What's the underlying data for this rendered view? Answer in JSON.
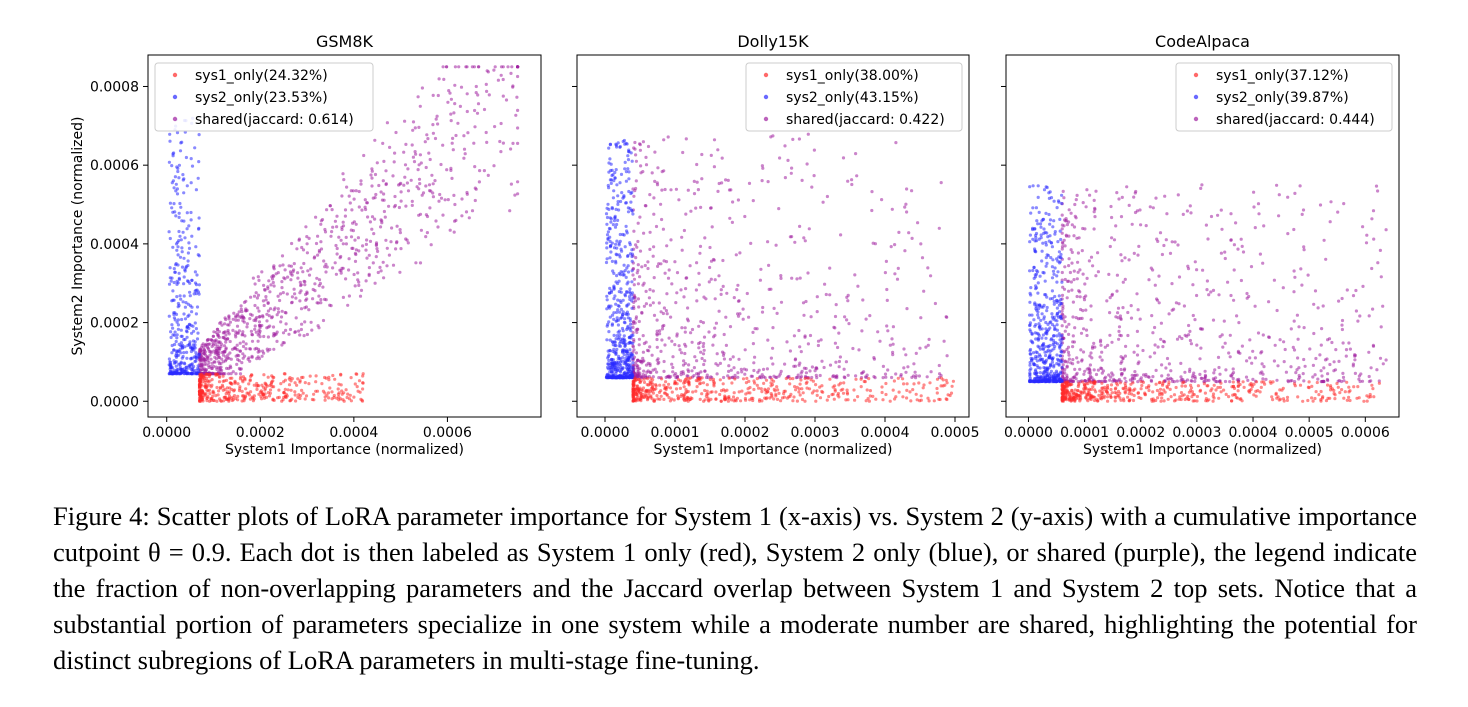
{
  "figure": {
    "caption": "Figure 4: Scatter plots of LoRA parameter importance for System 1 (x-axis) vs. System 2 (y-axis) with a cumulative importance cutpoint θ = 0.9. Each dot is then labeled as System 1 only (red), System 2 only (blue), or shared (purple), the legend indicate the fraction of non-overlapping parameters and the Jaccard overlap between System 1 and System 2 top sets. Notice that a substantial portion of parameters specialize in one system while a moderate number are shared, highlighting the potential for distinct subregions of LoRA parameters in multi-stage fine-tuning."
  },
  "colors": {
    "sys1": "#ff2a2a",
    "sys2": "#2a2aff",
    "shared": "#a020a0"
  },
  "chart_data": [
    {
      "type": "scatter",
      "title": "GSM8K",
      "xlabel": "System1 Importance (normalized)",
      "ylabel": "System2 Importance (normalized)",
      "xlim": [
        -4e-05,
        0.0008
      ],
      "ylim": [
        -4e-05,
        0.00088
      ],
      "xticks": [
        0,
        0.0002,
        0.0004,
        0.0006
      ],
      "xtick_labels": [
        "0.0000",
        "0.0002",
        "0.0004",
        "0.0006"
      ],
      "yticks": [
        0,
        0.0002,
        0.0004,
        0.0006,
        0.0008
      ],
      "ytick_labels": [
        "0.0000",
        "0.0002",
        "0.0004",
        "0.0006",
        "0.0008"
      ],
      "show_ytick_labels": true,
      "legend_position": "upper-left",
      "series": [
        {
          "name": "sys1_only(24.32%)",
          "color": "#ff2a2a",
          "n": 400,
          "x_range": [
            7e-05,
            0.00042
          ],
          "y_range": [
            0,
            7e-05
          ]
        },
        {
          "name": "sys2_only(23.53%)",
          "color": "#2a2aff",
          "n": 390,
          "x_range": [
            5e-06,
            7e-05
          ],
          "y_range": [
            7e-05,
            0.00072
          ]
        },
        {
          "name": "shared(jaccard: 0.614)",
          "color": "#a020a0",
          "n": 1000,
          "x_range": [
            7e-05,
            0.00075
          ],
          "y_range": [
            7e-05,
            0.00085
          ]
        }
      ]
    },
    {
      "type": "scatter",
      "title": "Dolly15K",
      "xlabel": "System1 Importance (normalized)",
      "ylabel": "",
      "xlim": [
        -4e-05,
        0.00052
      ],
      "ylim": [
        -4e-05,
        0.00088
      ],
      "xticks": [
        0,
        0.0001,
        0.0002,
        0.0003,
        0.0004,
        0.0005
      ],
      "xtick_labels": [
        "0.0000",
        "0.0001",
        "0.0002",
        "0.0003",
        "0.0004",
        "0.0005"
      ],
      "yticks": [
        0,
        0.0002,
        0.0004,
        0.0006,
        0.0008
      ],
      "ytick_labels": [
        "",
        "",
        "",
        "",
        ""
      ],
      "show_ytick_labels": false,
      "legend_position": "upper-right",
      "series": [
        {
          "name": "sys1_only(38.00%)",
          "color": "#ff2a2a",
          "n": 480,
          "x_range": [
            4e-05,
            0.0005
          ],
          "y_range": [
            0,
            6e-05
          ]
        },
        {
          "name": "sys2_only(43.15%)",
          "color": "#2a2aff",
          "n": 560,
          "x_range": [
            2e-06,
            4e-05
          ],
          "y_range": [
            6e-05,
            0.00067
          ]
        },
        {
          "name": "shared(jaccard: 0.422)",
          "color": "#a020a0",
          "n": 750,
          "x_range": [
            4e-05,
            0.00049
          ],
          "y_range": [
            6e-05,
            0.00068
          ]
        }
      ]
    },
    {
      "type": "scatter",
      "title": "CodeAlpaca",
      "xlabel": "System1 Importance (normalized)",
      "ylabel": "",
      "xlim": [
        -4e-05,
        0.00066
      ],
      "ylim": [
        -4e-05,
        0.00088
      ],
      "xticks": [
        0,
        0.0001,
        0.0002,
        0.0003,
        0.0004,
        0.0005,
        0.0006
      ],
      "xtick_labels": [
        "0.0000",
        "0.0001",
        "0.0002",
        "0.0003",
        "0.0004",
        "0.0005",
        "0.0006"
      ],
      "yticks": [
        0,
        0.0002,
        0.0004,
        0.0006,
        0.0008
      ],
      "ytick_labels": [
        "",
        "",
        "",
        "",
        ""
      ],
      "show_ytick_labels": false,
      "legend_position": "upper-right",
      "series": [
        {
          "name": "sys1_only(37.12%)",
          "color": "#ff2a2a",
          "n": 480,
          "x_range": [
            6e-05,
            0.00063
          ],
          "y_range": [
            0,
            5e-05
          ]
        },
        {
          "name": "sys2_only(39.87%)",
          "color": "#2a2aff",
          "n": 520,
          "x_range": [
            2e-06,
            6e-05
          ],
          "y_range": [
            5e-05,
            0.00055
          ]
        },
        {
          "name": "shared(jaccard: 0.444)",
          "color": "#a020a0",
          "n": 780,
          "x_range": [
            6e-05,
            0.00064
          ],
          "y_range": [
            5e-05,
            0.00055
          ]
        }
      ]
    }
  ]
}
